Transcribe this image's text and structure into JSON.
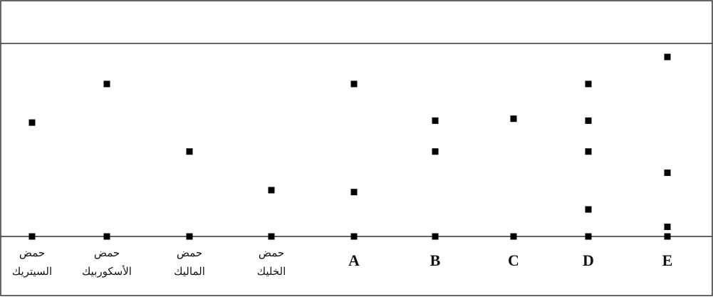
{
  "figure": {
    "header_text": "",
    "colors": {
      "line": "#333333",
      "spot": "#000000",
      "background": "#ffffff"
    }
  },
  "lanes": [
    {
      "id": "citric",
      "label_lines": [
        "حمض",
        "السيتريك"
      ],
      "spots": [
        0.59
      ],
      "interactive": false
    },
    {
      "id": "ascorbic",
      "label_lines": [
        "حمض",
        "الأسكوربيك"
      ],
      "spots": [
        0.79
      ],
      "interactive": false
    },
    {
      "id": "malic",
      "label_lines": [
        "حمض",
        "الماليك"
      ],
      "spots": [
        0.44
      ],
      "interactive": false
    },
    {
      "id": "oxalic",
      "label_lines": [
        "حمض",
        "الخليك"
      ],
      "spots": [
        0.24
      ],
      "interactive": false
    },
    {
      "id": "A",
      "label_lines": [
        "A"
      ],
      "spots": [
        0.79,
        0.23
      ],
      "interactive": false
    },
    {
      "id": "B",
      "label_lines": [
        "B"
      ],
      "spots": [
        0.6,
        0.44
      ],
      "interactive": false
    },
    {
      "id": "C",
      "label_lines": [
        "C"
      ],
      "spots": [
        0.61
      ],
      "interactive": false
    },
    {
      "id": "D",
      "label_lines": [
        "D"
      ],
      "spots": [
        0.79,
        0.6,
        0.44,
        0.14
      ],
      "interactive": false
    },
    {
      "id": "E",
      "label_lines": [
        "E"
      ],
      "spots": [
        0.93,
        0.33,
        0.05
      ],
      "interactive": false
    }
  ]
}
